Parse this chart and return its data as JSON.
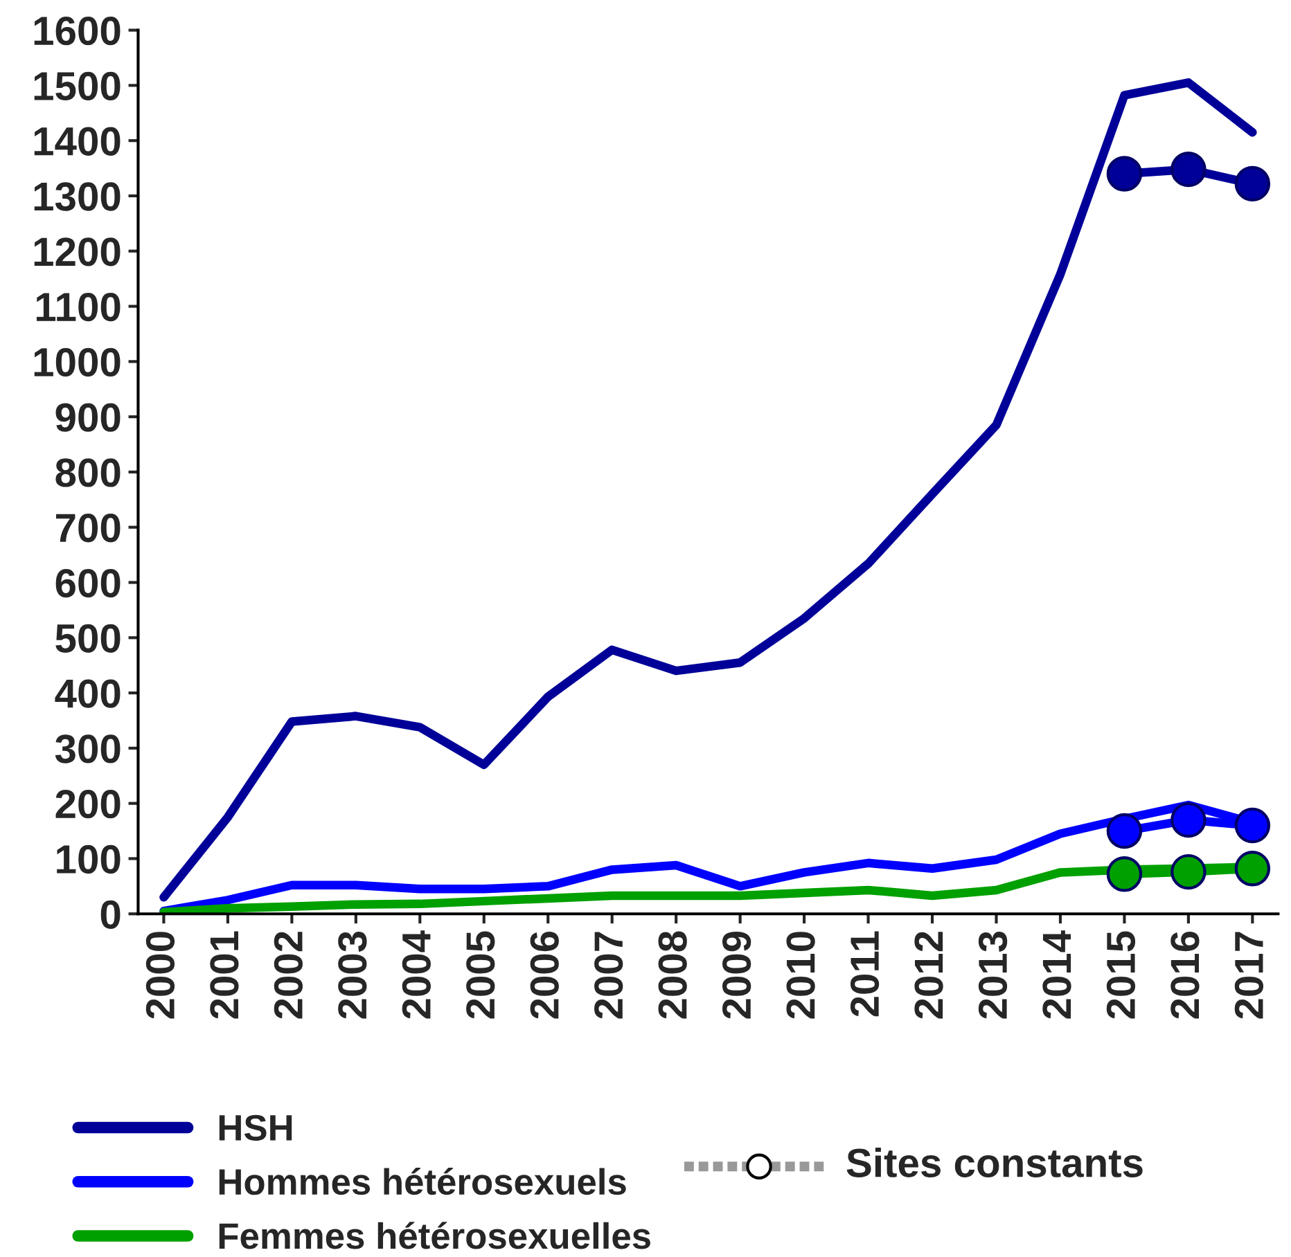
{
  "chart_data": {
    "type": "line",
    "categories": [
      "2000",
      "2001",
      "2002",
      "2003",
      "2004",
      "2005",
      "2006",
      "2007",
      "2008",
      "2009",
      "2010",
      "2011",
      "2012",
      "2013",
      "2014",
      "2015",
      "2016",
      "2017"
    ],
    "series": [
      {
        "name": "HSH",
        "color": "#000099",
        "values": [
          30,
          175,
          348,
          358,
          338,
          270,
          393,
          478,
          440,
          455,
          535,
          634,
          760,
          885,
          1158,
          1482,
          1505,
          1415
        ]
      },
      {
        "name": "Hommes hétérosexuels",
        "color": "#0000ff",
        "values": [
          5,
          25,
          52,
          52,
          45,
          45,
          50,
          80,
          88,
          50,
          75,
          92,
          82,
          98,
          145,
          172,
          197,
          165
        ]
      },
      {
        "name": "Femmes hétérosexuelles",
        "color": "#00a000",
        "values": [
          3,
          10,
          13,
          17,
          18,
          23,
          28,
          33,
          33,
          33,
          38,
          43,
          33,
          43,
          75,
          80,
          82,
          85
        ]
      },
      {
        "color": "#000099",
        "marker": "circle",
        "values": [
          null,
          null,
          null,
          null,
          null,
          null,
          null,
          null,
          null,
          null,
          null,
          null,
          null,
          null,
          null,
          1340,
          1348,
          1322
        ]
      },
      {
        "color": "#0000ff",
        "marker": "circle",
        "values": [
          null,
          null,
          null,
          null,
          null,
          null,
          null,
          null,
          null,
          null,
          null,
          null,
          null,
          null,
          null,
          150,
          170,
          160
        ]
      },
      {
        "color": "#00a000",
        "marker": "circle",
        "values": [
          null,
          null,
          null,
          null,
          null,
          null,
          null,
          null,
          null,
          null,
          null,
          null,
          null,
          null,
          null,
          72,
          76,
          82
        ]
      }
    ],
    "ylim": [
      0,
      1600
    ],
    "yticks": [
      0,
      100,
      200,
      300,
      400,
      500,
      600,
      700,
      800,
      900,
      1000,
      1100,
      1200,
      1300,
      1400,
      1500,
      1600
    ],
    "grid": false,
    "legend": "bottom",
    "marker": "none",
    "annotations": [
      "Sites constants"
    ]
  }
}
